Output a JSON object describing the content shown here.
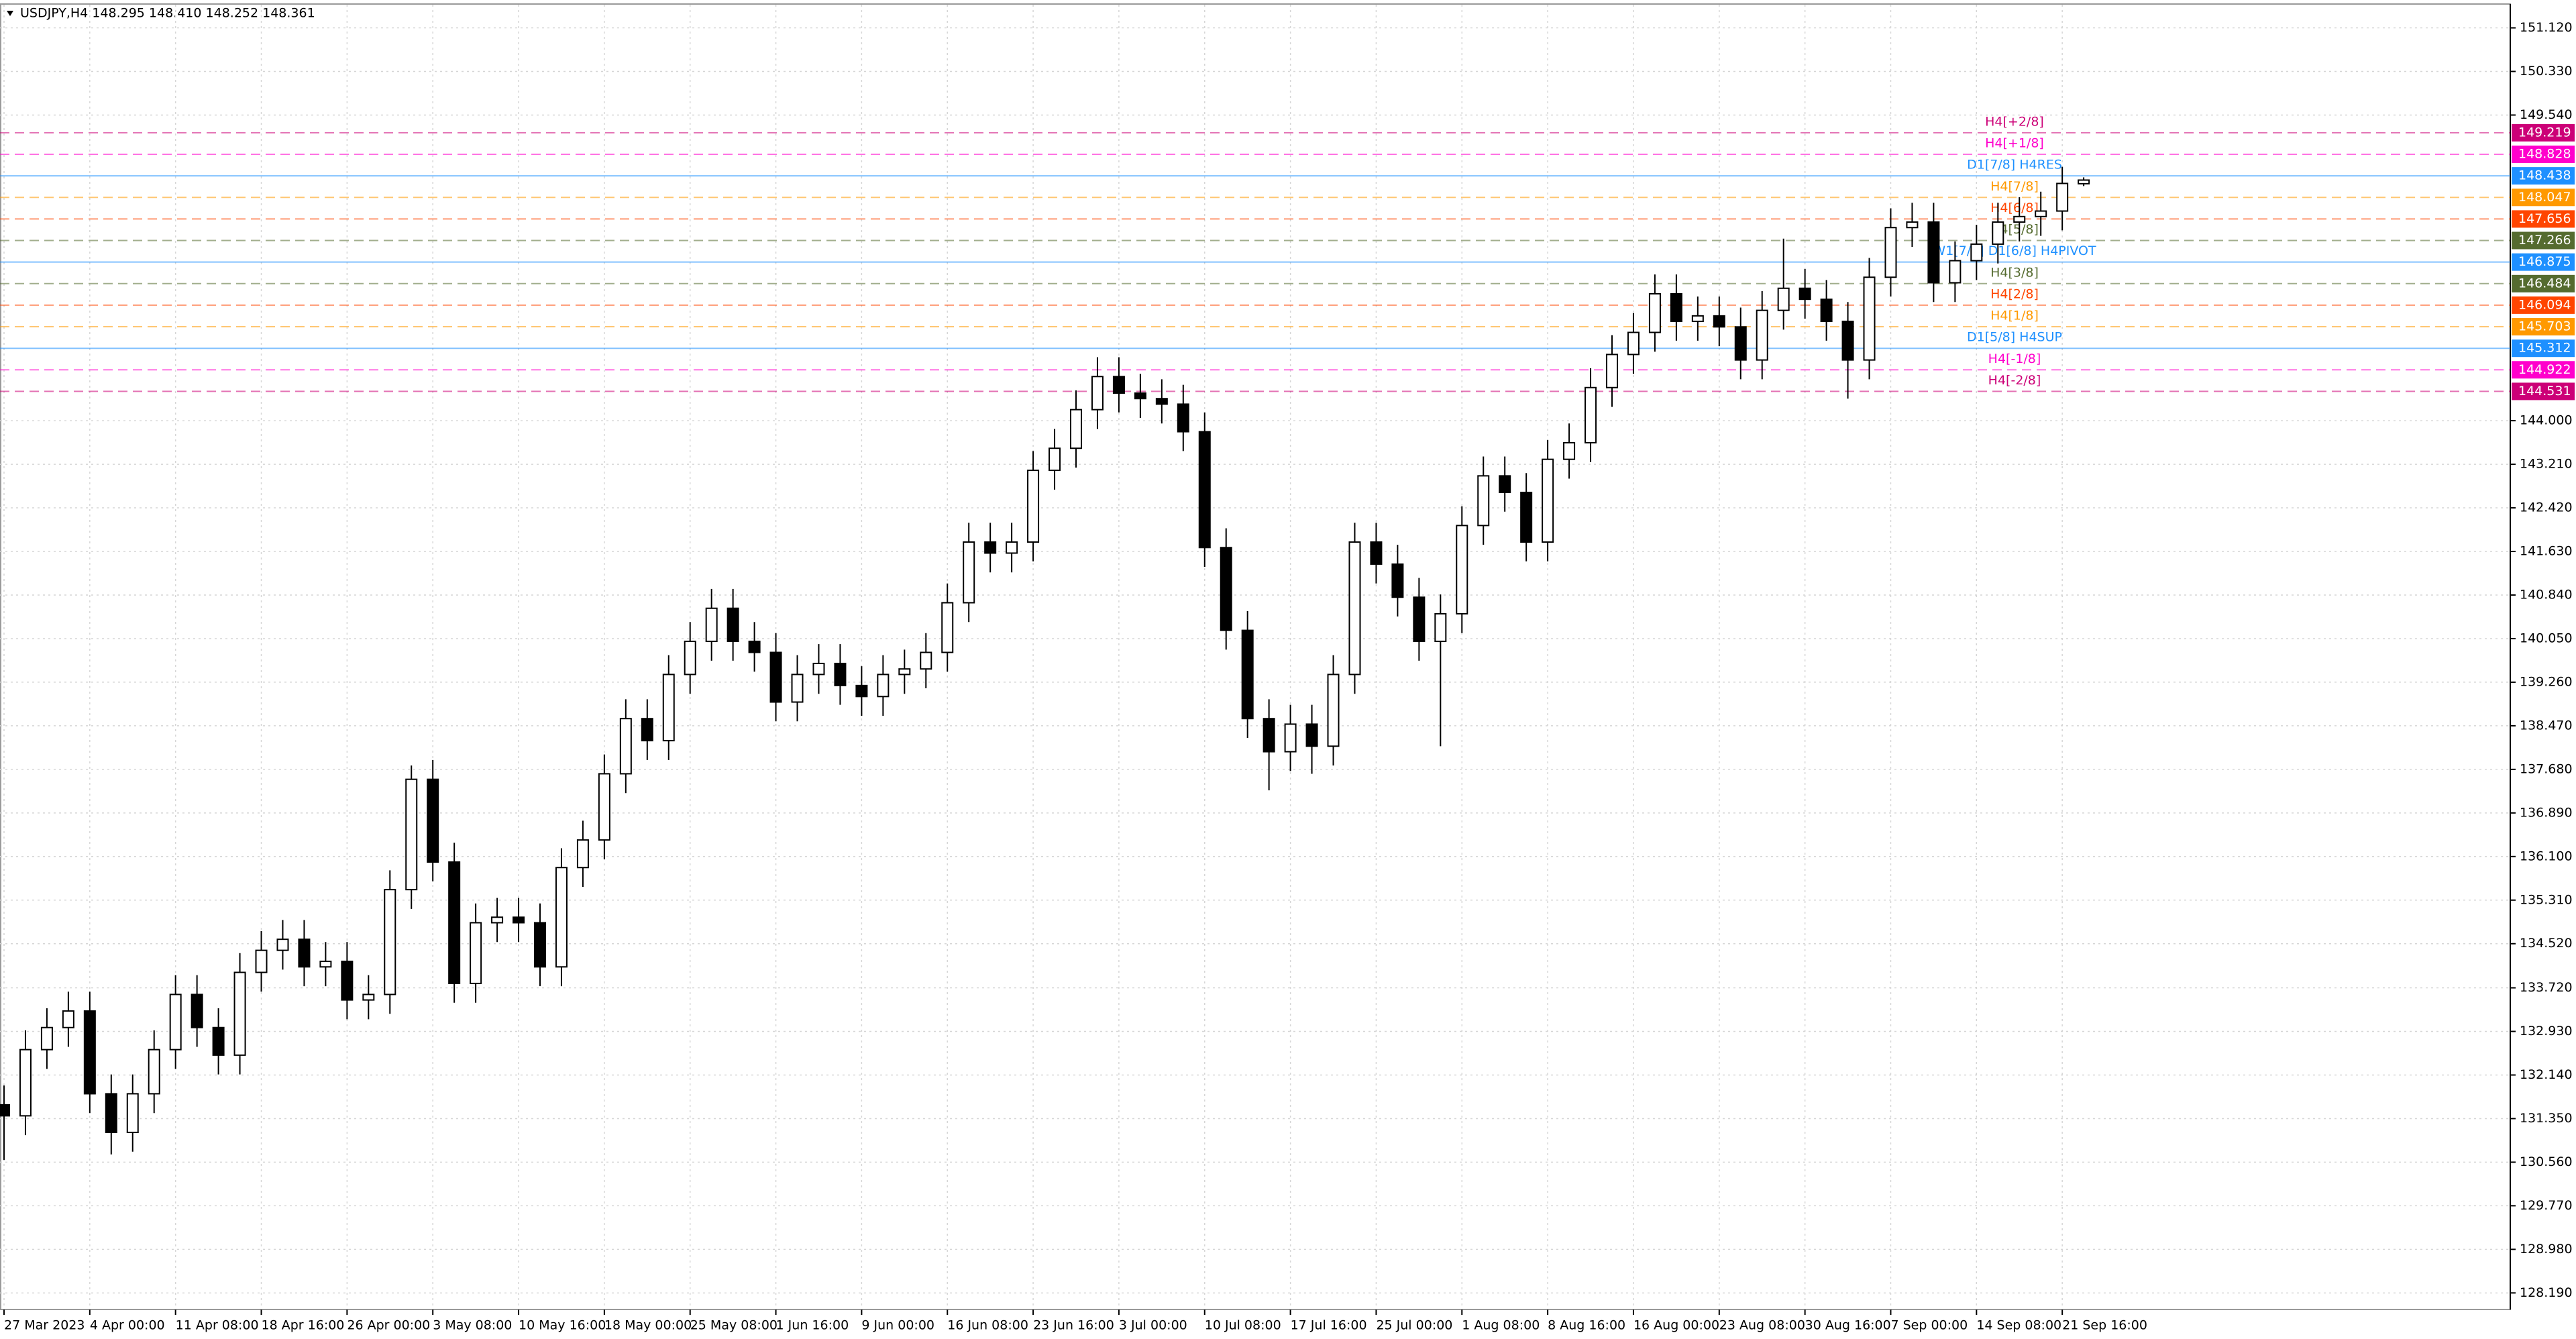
{
  "chart_data": {
    "type": "candlestick",
    "title": "USDJPY,H4  148.295 148.410 148.252 148.361",
    "categories": [
      "27 Mar 2023",
      null,
      null,
      null,
      "4 Apr 00:00",
      null,
      null,
      null,
      "11 Apr 08:00",
      null,
      null,
      null,
      "18 Apr 16:00",
      null,
      null,
      null,
      "26 Apr 00:00",
      null,
      null,
      null,
      "3 May 08:00",
      null,
      null,
      null,
      "10 May 16:00",
      null,
      null,
      null,
      "18 May 00:00",
      null,
      null,
      null,
      "25 May 08:00",
      null,
      null,
      null,
      "1 Jun 16:00",
      null,
      null,
      null,
      "9 Jun 00:00",
      null,
      null,
      null,
      "16 Jun 08:00",
      null,
      null,
      null,
      "23 Jun 16:00",
      null,
      null,
      null,
      "3 Jul 00:00",
      null,
      null,
      null,
      "10 Jul 08:00",
      null,
      null,
      null,
      "17 Jul 16:00",
      null,
      null,
      null,
      "25 Jul 00:00",
      null,
      null,
      null,
      "1 Aug 08:00",
      null,
      null,
      null,
      "8 Aug 16:00",
      null,
      null,
      null,
      "16 Aug 00:00",
      null,
      null,
      null,
      "23 Aug 08:00",
      null,
      null,
      null,
      "30 Aug 16:00",
      null,
      null,
      null,
      "7 Sep 00:00",
      null,
      null,
      null,
      "14 Sep 08:00",
      null,
      null,
      null,
      "21 Sep 16:00",
      null
    ],
    "open": [
      131.6,
      131.4,
      132.6,
      133.0,
      133.3,
      131.8,
      131.1,
      131.8,
      132.6,
      133.6,
      133.0,
      132.5,
      134.0,
      134.4,
      134.6,
      134.1,
      134.2,
      133.5,
      133.6,
      135.5,
      137.5,
      136.0,
      133.8,
      134.9,
      135.0,
      134.9,
      134.1,
      135.9,
      136.4,
      137.6,
      138.6,
      138.2,
      139.4,
      140.0,
      140.6,
      140.0,
      139.8,
      138.9,
      139.4,
      139.6,
      139.2,
      139.0,
      139.4,
      139.5,
      139.8,
      140.7,
      141.8,
      141.6,
      141.8,
      143.1,
      143.5,
      144.2,
      144.8,
      144.5,
      144.4,
      144.3,
      143.8,
      141.7,
      140.2,
      138.6,
      138.0,
      138.5,
      138.1,
      139.4,
      141.8,
      141.4,
      140.8,
      140.0,
      140.5,
      142.1,
      143.0,
      142.7,
      141.8,
      143.3,
      143.6,
      144.6,
      145.2,
      145.6,
      146.3,
      145.8,
      145.9,
      145.7,
      145.1,
      146.0,
      146.4,
      146.2,
      145.8,
      145.1,
      146.6,
      147.5,
      147.6,
      146.5,
      146.9,
      147.2,
      147.6,
      147.7,
      147.8,
      148.295
    ],
    "high": [
      131.95,
      132.95,
      133.35,
      133.65,
      133.65,
      132.15,
      132.15,
      132.95,
      133.95,
      133.95,
      133.35,
      134.35,
      134.75,
      134.95,
      134.95,
      134.55,
      134.55,
      133.95,
      135.85,
      137.75,
      137.85,
      136.35,
      135.25,
      135.35,
      135.35,
      135.25,
      136.25,
      136.75,
      137.95,
      138.95,
      138.95,
      139.75,
      140.35,
      140.95,
      140.95,
      140.35,
      140.15,
      139.75,
      139.95,
      139.95,
      139.55,
      139.75,
      139.85,
      140.15,
      141.05,
      142.15,
      142.15,
      142.15,
      143.45,
      143.85,
      144.55,
      145.15,
      145.15,
      144.85,
      144.75,
      144.65,
      144.15,
      142.05,
      140.55,
      138.95,
      138.85,
      138.85,
      139.75,
      142.15,
      142.15,
      141.75,
      141.15,
      140.85,
      142.45,
      143.35,
      143.35,
      143.05,
      143.65,
      143.95,
      144.95,
      145.55,
      145.95,
      146.65,
      146.65,
      146.25,
      146.25,
      146.05,
      146.35,
      147.3,
      146.75,
      146.55,
      146.15,
      146.95,
      147.85,
      147.95,
      147.95,
      147.25,
      147.55,
      147.95,
      148.05,
      148.15,
      148.6,
      148.41
    ],
    "low": [
      130.6,
      131.05,
      132.25,
      132.65,
      131.45,
      130.7,
      130.75,
      131.45,
      132.25,
      132.65,
      132.15,
      132.15,
      133.65,
      134.05,
      133.75,
      133.75,
      133.15,
      133.15,
      133.25,
      135.15,
      135.65,
      133.45,
      133.45,
      134.55,
      134.55,
      133.75,
      133.75,
      135.55,
      136.05,
      137.25,
      137.85,
      137.85,
      139.05,
      139.65,
      139.65,
      139.45,
      138.55,
      138.55,
      139.05,
      138.85,
      138.65,
      138.65,
      139.05,
      139.15,
      139.45,
      140.35,
      141.25,
      141.25,
      141.45,
      142.75,
      143.15,
      143.85,
      144.15,
      144.05,
      143.95,
      143.45,
      141.35,
      139.85,
      138.25,
      137.3,
      137.65,
      137.6,
      137.75,
      139.05,
      141.05,
      140.45,
      139.65,
      138.1,
      140.15,
      141.75,
      142.35,
      141.45,
      141.45,
      142.95,
      143.25,
      144.25,
      144.85,
      145.25,
      145.45,
      145.45,
      145.35,
      144.75,
      144.75,
      145.65,
      145.85,
      145.45,
      144.4,
      144.75,
      146.25,
      147.15,
      146.15,
      146.15,
      146.55,
      146.85,
      147.25,
      147.35,
      147.45,
      148.252
    ],
    "close": [
      131.4,
      132.6,
      133.0,
      133.3,
      131.8,
      131.1,
      131.8,
      132.6,
      133.6,
      133.0,
      132.5,
      134.0,
      134.4,
      134.6,
      134.1,
      134.2,
      133.5,
      133.6,
      135.5,
      137.5,
      136.0,
      133.8,
      134.9,
      135.0,
      134.9,
      134.1,
      135.9,
      136.4,
      137.6,
      138.6,
      138.2,
      139.4,
      140.0,
      140.6,
      140.0,
      139.8,
      138.9,
      139.4,
      139.6,
      139.2,
      139.0,
      139.4,
      139.5,
      139.8,
      140.7,
      141.8,
      141.6,
      141.8,
      143.1,
      143.5,
      144.2,
      144.8,
      144.5,
      144.4,
      144.3,
      143.8,
      141.7,
      140.2,
      138.6,
      138.0,
      138.5,
      138.1,
      139.4,
      141.8,
      141.4,
      140.8,
      140.0,
      140.5,
      142.1,
      143.0,
      142.7,
      141.8,
      143.3,
      143.6,
      144.6,
      145.2,
      145.6,
      146.3,
      145.8,
      145.9,
      145.7,
      145.1,
      146.0,
      146.4,
      146.2,
      145.8,
      145.1,
      146.6,
      147.5,
      147.6,
      146.5,
      146.9,
      147.2,
      147.6,
      147.7,
      147.8,
      148.3,
      148.361
    ],
    "bull_color": "#ffffff",
    "bear_color": "#000000",
    "line_color": "#000000",
    "ylim": [
      127.89,
      151.54
    ],
    "yticks": [
      {
        "value": 151.12,
        "label": "151.120"
      },
      {
        "value": 150.33,
        "label": "150.330"
      },
      {
        "value": 149.54,
        "label": "149.540"
      },
      {
        "value": 144.0,
        "label": "144.000"
      },
      {
        "value": 143.21,
        "label": "143.210"
      },
      {
        "value": 142.42,
        "label": "142.420"
      },
      {
        "value": 141.63,
        "label": "141.630"
      },
      {
        "value": 140.84,
        "label": "140.840"
      },
      {
        "value": 140.05,
        "label": "140.050"
      },
      {
        "value": 139.26,
        "label": "139.260"
      },
      {
        "value": 138.47,
        "label": "138.470"
      },
      {
        "value": 137.68,
        "label": "137.680"
      },
      {
        "value": 136.89,
        "label": "136.890"
      },
      {
        "value": 136.1,
        "label": "136.100"
      },
      {
        "value": 135.31,
        "label": "135.310"
      },
      {
        "value": 134.52,
        "label": "134.520"
      },
      {
        "value": 133.72,
        "label": "133.720"
      },
      {
        "value": 132.93,
        "label": "132.930"
      },
      {
        "value": 132.14,
        "label": "132.140"
      },
      {
        "value": 131.35,
        "label": "131.350"
      },
      {
        "value": 130.56,
        "label": "130.560"
      },
      {
        "value": 129.77,
        "label": "129.770"
      },
      {
        "value": 128.98,
        "label": "128.980"
      },
      {
        "value": 128.19,
        "label": "128.190"
      }
    ],
    "grid": true,
    "levels": [
      {
        "price": 149.219,
        "label": "H4[+2/8]",
        "color": "#cc0077",
        "style": "dashed"
      },
      {
        "price": 148.828,
        "label": "H4[+1/8]",
        "color": "#ff00cc",
        "style": "dashed"
      },
      {
        "price": 148.438,
        "label": "D1[7/8] H4RES",
        "color": "#1e90ff",
        "style": "solid"
      },
      {
        "price": 148.047,
        "label": "H4[7/8]",
        "color": "#ff9900",
        "style": "dashed"
      },
      {
        "price": 147.656,
        "label": "H4[6/8]",
        "color": "#ff4500",
        "style": "dashed"
      },
      {
        "price": 147.266,
        "label": "H4[5/8]",
        "color": "#556b2f",
        "style": "dashed"
      },
      {
        "price": 146.875,
        "label": "W1[7/8] D1[6/8] H4PIVOT",
        "color": "#1e90ff",
        "style": "solid"
      },
      {
        "price": 146.484,
        "label": "H4[3/8]",
        "color": "#556b2f",
        "style": "dashed"
      },
      {
        "price": 146.094,
        "label": "H4[2/8]",
        "color": "#ff4500",
        "style": "dashed"
      },
      {
        "price": 145.703,
        "label": "H4[1/8]",
        "color": "#ff9900",
        "style": "dashed"
      },
      {
        "price": 145.312,
        "label": "D1[5/8] H4SUP",
        "color": "#1e90ff",
        "style": "solid"
      },
      {
        "price": 144.922,
        "label": "H4[-1/8]",
        "color": "#ff00cc",
        "style": "dashed"
      },
      {
        "price": 144.531,
        "label": "H4[-2/8]",
        "color": "#cc0077",
        "style": "dashed"
      }
    ]
  }
}
